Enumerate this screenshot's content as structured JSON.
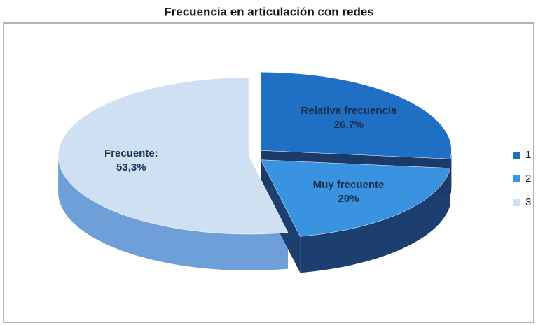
{
  "chart_data": {
    "type": "pie3d",
    "title": "Frecuencia en articulación con redes",
    "categories": [
      "1",
      "2",
      "3"
    ],
    "label_names": [
      "Relativa frecuencia",
      "Muy frecuente",
      "Frecuente:"
    ],
    "values": [
      26.7,
      20,
      53.3
    ],
    "value_labels": [
      "26,7%",
      "20%",
      "53,3%"
    ],
    "colors": [
      "#1f6fc5",
      "#3a93e0",
      "#cfe0f2"
    ],
    "side_colors": [
      "#1b3a68",
      "#1d3f70",
      "#6f9fd8"
    ],
    "legend": "right"
  }
}
